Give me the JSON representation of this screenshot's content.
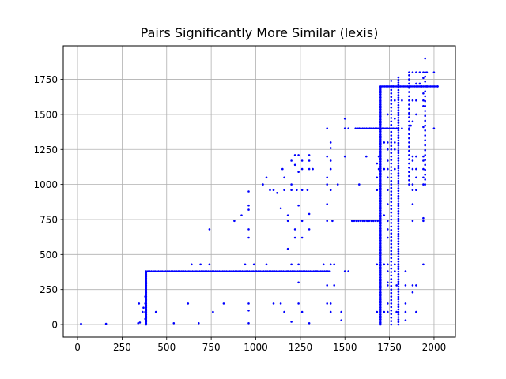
{
  "chart_data": {
    "type": "scatter",
    "title": "Pairs Significantly More Similar (lexis)",
    "xlabel": "",
    "ylabel": "",
    "xlim": [
      -80,
      2120
    ],
    "ylim": [
      -90,
      1990
    ],
    "xticks": [
      0,
      250,
      500,
      750,
      1000,
      1250,
      1500,
      1750,
      2000
    ],
    "yticks": [
      0,
      250,
      500,
      750,
      1000,
      1250,
      1500,
      1750
    ],
    "grid": true,
    "marker_color": "#0000ff",
    "marker_size": 2,
    "segments": [
      {
        "axis": "h",
        "y": 380,
        "x_from": 395,
        "x_to": 1420,
        "step": 10
      },
      {
        "axis": "v",
        "x": 385,
        "y_from": 0,
        "y_to": 380,
        "step": 10
      },
      {
        "axis": "h",
        "y": 1700,
        "x_from": 1700,
        "x_to": 2025,
        "step": 8
      },
      {
        "axis": "v",
        "x": 1700,
        "y_from": 0,
        "y_to": 1700,
        "step": 12
      },
      {
        "axis": "v",
        "x": 1800,
        "y_from": 0,
        "y_to": 1780,
        "step": 18
      },
      {
        "axis": "h",
        "y": 1400,
        "x_from": 1560,
        "x_to": 1800,
        "step": 10
      },
      {
        "axis": "h",
        "y": 740,
        "x_from": 1540,
        "x_to": 1700,
        "step": 12
      },
      {
        "axis": "v",
        "x": 1760,
        "y_from": 0,
        "y_to": 1700,
        "step": 25
      },
      {
        "axis": "v",
        "x": 1860,
        "y_from": 1000,
        "y_to": 1780,
        "step": 30
      },
      {
        "axis": "v",
        "x": 1950,
        "y_from": 1000,
        "y_to": 1780,
        "step": 35
      }
    ],
    "points": [
      [
        20,
        5
      ],
      [
        160,
        5
      ],
      [
        340,
        10
      ],
      [
        345,
        150
      ],
      [
        350,
        15
      ],
      [
        365,
        90
      ],
      [
        370,
        120
      ],
      [
        380,
        40
      ],
      [
        380,
        90
      ],
      [
        380,
        150
      ],
      [
        380,
        200
      ],
      [
        440,
        90
      ],
      [
        540,
        10
      ],
      [
        620,
        150
      ],
      [
        640,
        430
      ],
      [
        680,
        10
      ],
      [
        690,
        430
      ],
      [
        740,
        430
      ],
      [
        740,
        680
      ],
      [
        760,
        90
      ],
      [
        820,
        150
      ],
      [
        880,
        740
      ],
      [
        920,
        780
      ],
      [
        940,
        430
      ],
      [
        960,
        620
      ],
      [
        960,
        680
      ],
      [
        960,
        820
      ],
      [
        960,
        850
      ],
      [
        960,
        950
      ],
      [
        960,
        150
      ],
      [
        960,
        100
      ],
      [
        960,
        10
      ],
      [
        990,
        430
      ],
      [
        1000,
        380
      ],
      [
        1040,
        1000
      ],
      [
        1060,
        1050
      ],
      [
        1060,
        430
      ],
      [
        1080,
        960
      ],
      [
        1100,
        960
      ],
      [
        1100,
        150
      ],
      [
        1120,
        940
      ],
      [
        1140,
        830
      ],
      [
        1140,
        150
      ],
      [
        1150,
        1110
      ],
      [
        1160,
        1050
      ],
      [
        1160,
        960
      ],
      [
        1160,
        90
      ],
      [
        1180,
        780
      ],
      [
        1180,
        740
      ],
      [
        1180,
        540
      ],
      [
        1180,
        380
      ],
      [
        1200,
        1170
      ],
      [
        1200,
        1000
      ],
      [
        1200,
        960
      ],
      [
        1200,
        430
      ],
      [
        1200,
        20
      ],
      [
        1220,
        1210
      ],
      [
        1220,
        1140
      ],
      [
        1220,
        680
      ],
      [
        1220,
        620
      ],
      [
        1230,
        960
      ],
      [
        1240,
        1210
      ],
      [
        1240,
        1090
      ],
      [
        1240,
        850
      ],
      [
        1240,
        430
      ],
      [
        1240,
        300
      ],
      [
        1240,
        150
      ],
      [
        1260,
        1170
      ],
      [
        1260,
        1110
      ],
      [
        1260,
        960
      ],
      [
        1260,
        740
      ],
      [
        1260,
        620
      ],
      [
        1260,
        90
      ],
      [
        1290,
        960
      ],
      [
        1300,
        1210
      ],
      [
        1300,
        1170
      ],
      [
        1300,
        1110
      ],
      [
        1300,
        790
      ],
      [
        1300,
        680
      ],
      [
        1300,
        10
      ],
      [
        1320,
        1110
      ],
      [
        1340,
        380
      ],
      [
        1380,
        430
      ],
      [
        1400,
        1400
      ],
      [
        1400,
        1200
      ],
      [
        1400,
        1050
      ],
      [
        1400,
        1000
      ],
      [
        1400,
        860
      ],
      [
        1400,
        740
      ],
      [
        1400,
        280
      ],
      [
        1400,
        150
      ],
      [
        1420,
        1300
      ],
      [
        1420,
        1260
      ],
      [
        1420,
        1170
      ],
      [
        1420,
        1110
      ],
      [
        1420,
        960
      ],
      [
        1420,
        430
      ],
      [
        1420,
        150
      ],
      [
        1420,
        90
      ],
      [
        1430,
        740
      ],
      [
        1440,
        430
      ],
      [
        1440,
        280
      ],
      [
        1460,
        1000
      ],
      [
        1480,
        90
      ],
      [
        1480,
        30
      ],
      [
        1500,
        1400
      ],
      [
        1500,
        1470
      ],
      [
        1500,
        1200
      ],
      [
        1500,
        380
      ],
      [
        1520,
        1400
      ],
      [
        1520,
        380
      ],
      [
        1580,
        1400
      ],
      [
        1580,
        1000
      ],
      [
        1620,
        1200
      ],
      [
        1640,
        1400
      ],
      [
        1660,
        740
      ],
      [
        1680,
        1150
      ],
      [
        1680,
        1050
      ],
      [
        1680,
        960
      ],
      [
        1680,
        430
      ],
      [
        1680,
        90
      ],
      [
        1690,
        1200
      ],
      [
        1690,
        1110
      ],
      [
        1720,
        1300
      ],
      [
        1720,
        1110
      ],
      [
        1720,
        780
      ],
      [
        1720,
        430
      ],
      [
        1720,
        90
      ],
      [
        1740,
        1500
      ],
      [
        1740,
        1300
      ],
      [
        1740,
        1250
      ],
      [
        1740,
        1170
      ],
      [
        1740,
        1110
      ],
      [
        1740,
        1050
      ],
      [
        1740,
        960
      ],
      [
        1740,
        860
      ],
      [
        1740,
        740
      ],
      [
        1740,
        680
      ],
      [
        1740,
        620
      ],
      [
        1740,
        430
      ],
      [
        1740,
        380
      ],
      [
        1740,
        300
      ],
      [
        1740,
        280
      ],
      [
        1740,
        150
      ],
      [
        1740,
        90
      ],
      [
        1760,
        1740
      ],
      [
        1770,
        1700
      ],
      [
        1780,
        1600
      ],
      [
        1780,
        1470
      ],
      [
        1780,
        1300
      ],
      [
        1780,
        1250
      ],
      [
        1780,
        1110
      ],
      [
        1780,
        430
      ],
      [
        1780,
        380
      ],
      [
        1790,
        280
      ],
      [
        1790,
        90
      ],
      [
        1820,
        1600
      ],
      [
        1820,
        1400
      ],
      [
        1840,
        380
      ],
      [
        1840,
        280
      ],
      [
        1840,
        150
      ],
      [
        1840,
        90
      ],
      [
        1840,
        30
      ],
      [
        1860,
        1800
      ],
      [
        1860,
        1500
      ],
      [
        1860,
        1400
      ],
      [
        1870,
        1420
      ],
      [
        1880,
        1800
      ],
      [
        1880,
        1600
      ],
      [
        1880,
        1450
      ],
      [
        1880,
        1200
      ],
      [
        1880,
        1170
      ],
      [
        1880,
        1110
      ],
      [
        1880,
        1000
      ],
      [
        1880,
        960
      ],
      [
        1880,
        860
      ],
      [
        1880,
        740
      ],
      [
        1880,
        280
      ],
      [
        1880,
        230
      ],
      [
        1900,
        1800
      ],
      [
        1900,
        1720
      ],
      [
        1900,
        1600
      ],
      [
        1900,
        1500
      ],
      [
        1900,
        1200
      ],
      [
        1900,
        1110
      ],
      [
        1900,
        1050
      ],
      [
        1900,
        960
      ],
      [
        1900,
        280
      ],
      [
        1900,
        90
      ],
      [
        1920,
        1800
      ],
      [
        1920,
        1720
      ],
      [
        1930,
        1700
      ],
      [
        1940,
        1800
      ],
      [
        1940,
        1760
      ],
      [
        1940,
        1650
      ],
      [
        1940,
        1600
      ],
      [
        1940,
        1560
      ],
      [
        1940,
        1410
      ],
      [
        1940,
        1200
      ],
      [
        1940,
        1170
      ],
      [
        1940,
        1110
      ],
      [
        1940,
        1050
      ],
      [
        1940,
        1000
      ],
      [
        1940,
        760
      ],
      [
        1940,
        740
      ],
      [
        1940,
        430
      ],
      [
        1950,
        1900
      ],
      [
        1950,
        1800
      ],
      [
        1960,
        1800
      ],
      [
        1960,
        1700
      ],
      [
        2000,
        1800
      ],
      [
        2000,
        1400
      ],
      [
        2020,
        1700
      ]
    ]
  }
}
